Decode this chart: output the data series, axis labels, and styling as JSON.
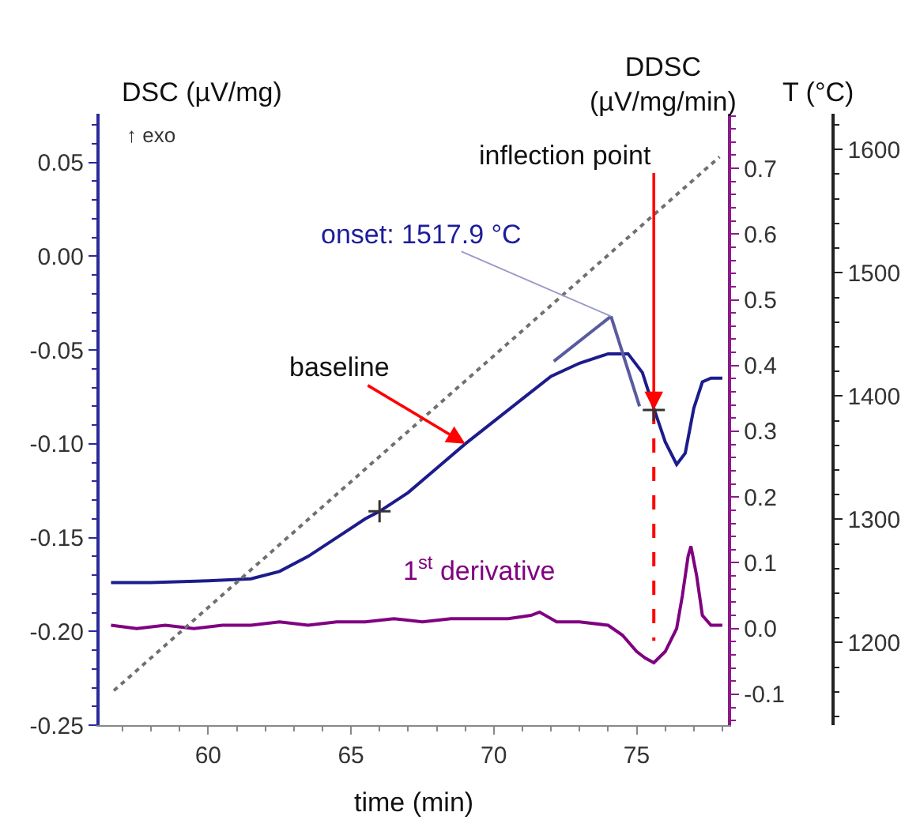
{
  "chart_data": {
    "type": "line",
    "xlabel": "time (min)",
    "ylabel": "DSC (µV/mg)",
    "y2label": "DDSC\n(µV/mg/min)",
    "y3label": "T (°C)",
    "xlim": [
      56.2,
      78.2
    ],
    "xticks": [
      60,
      65,
      70,
      75
    ],
    "ylim": [
      -0.25,
      0.076
    ],
    "yticks": [
      {
        "value": -0.25,
        "label": "-0.25"
      },
      {
        "value": -0.2,
        "label": "-0.20"
      },
      {
        "value": -0.15,
        "label": "-0.15"
      },
      {
        "value": -0.1,
        "label": "-0.10"
      },
      {
        "value": -0.05,
        "label": "-0.05"
      },
      {
        "value": 0,
        "label": "0.00"
      },
      {
        "value": 0.05,
        "label": "0.05"
      }
    ],
    "y2lim": [
      -0.147,
      0.783
    ],
    "y2ticks": [
      {
        "value": -0.1,
        "label": "-0.1"
      },
      {
        "value": 0,
        "label": "0.0"
      },
      {
        "value": 0.1,
        "label": "0.1"
      },
      {
        "value": 0.2,
        "label": "0.2"
      },
      {
        "value": 0.3,
        "label": "0.3"
      },
      {
        "value": 0.4,
        "label": "0.4"
      },
      {
        "value": 0.5,
        "label": "0.5"
      },
      {
        "value": 0.6,
        "label": "0.6"
      },
      {
        "value": 0.7,
        "label": "0.7"
      }
    ],
    "y3lim": [
      1133,
      1629
    ],
    "y3ticks": [
      1200,
      1300,
      1400,
      1500,
      1600
    ],
    "series": [
      {
        "color": "#1c1c8c",
        "x": [
          56.6,
          58,
          60,
          61.5,
          62.5,
          63.5,
          64.5,
          65.5,
          66,
          67,
          68,
          69,
          70,
          71,
          72,
          73,
          74,
          74.7,
          75.2,
          75.6,
          76,
          76.4,
          76.7,
          77,
          77.3,
          77.6,
          78
        ],
        "values": [
          -0.174,
          -0.174,
          -0.173,
          -0.172,
          -0.168,
          -0.16,
          -0.15,
          -0.14,
          -0.136,
          -0.126,
          -0.113,
          -0.1,
          -0.088,
          -0.076,
          -0.064,
          -0.057,
          -0.052,
          -0.052,
          -0.062,
          -0.081,
          -0.099,
          -0.111,
          -0.105,
          -0.081,
          -0.067,
          -0.065,
          -0.065
        ]
      },
      {
        "name": "1$^{st}$ derivative",
        "color": "#800080",
        "axis": "y2",
        "x": [
          56.6,
          57.5,
          58.5,
          59.5,
          60.5,
          61.5,
          62.5,
          63.5,
          64.5,
          65.5,
          66.5,
          67.5,
          68.5,
          69.5,
          70.5,
          71.3,
          71.6,
          72.2,
          73,
          74,
          74.5,
          75,
          75.3,
          75.6,
          76,
          76.4,
          76.6,
          76.8,
          76.9,
          77.1,
          77.3,
          77.6,
          78
        ],
        "values": [
          0.005,
          0.0,
          0.005,
          0.0,
          0.005,
          0.005,
          0.01,
          0.005,
          0.01,
          0.01,
          0.015,
          0.01,
          0.015,
          0.015,
          0.015,
          0.02,
          0.025,
          0.01,
          0.01,
          0.005,
          -0.01,
          -0.035,
          -0.045,
          -0.052,
          -0.035,
          0.0,
          0.05,
          0.11,
          0.125,
          0.08,
          0.02,
          0.005,
          0.005
        ]
      },
      {
        "color": "#707070",
        "axis": "y3",
        "line_style": "dotted",
        "x": [
          56.7,
          77.9
        ],
        "values": [
          1161,
          1594
        ]
      },
      {
        "color": "#5a5aa0",
        "x": [
          72.1,
          74.1
        ],
        "values": [
          -0.056,
          -0.032
        ]
      },
      {
        "color": "#5a5aa0",
        "x": [
          74.1,
          75.1
        ],
        "values": [
          -0.032,
          -0.08
        ]
      },
      {
        "color": "#ff0000",
        "line_style": "dashed",
        "x": [
          75.6,
          75.6
        ],
        "values": [
          -0.082,
          -0.205
        ]
      },
      {
        "type": "scatter",
        "marker": "cross",
        "color": "#333333",
        "x": [
          66,
          75.6
        ],
        "values": [
          -0.136,
          -0.082
        ]
      }
    ],
    "annotations": [
      "↑ exo",
      {
        "text": "onset: 1517.9 °C",
        "x": 74.1,
        "y": -0.032
      },
      {
        "text": "baseline",
        "x": 69,
        "y": -0.1
      },
      {
        "text": "inflection point",
        "x": 75.6,
        "y": -0.082
      }
    ]
  }
}
